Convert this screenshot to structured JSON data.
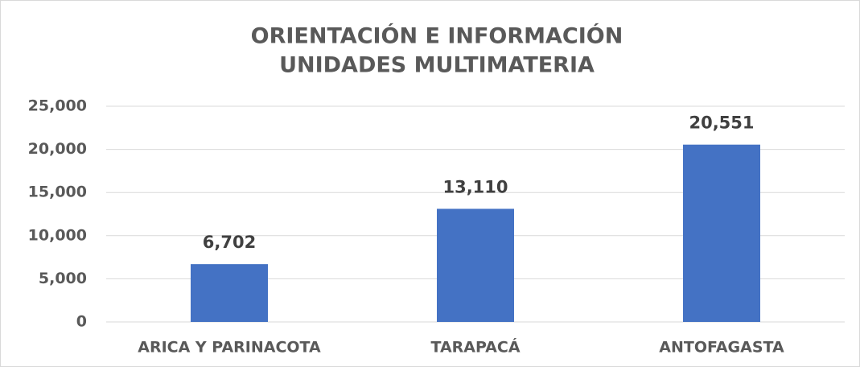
{
  "chart_data": {
    "type": "bar",
    "title": [
      "ORIENTACIÓN E INFORMACIÓN",
      "UNIDADES MULTIMATERIA"
    ],
    "categories": [
      "ARICA Y PARINACOTA",
      "TARAPACÁ",
      "ANTOFAGASTA"
    ],
    "values": [
      6702,
      13110,
      20551
    ],
    "value_labels": [
      "6,702",
      "13,110",
      "20,551"
    ],
    "color": "#4472c4",
    "ylim": [
      0,
      25000
    ],
    "yticks": [
      0,
      {
        "value": 5000,
        "label": "5,000"
      },
      {
        "value": 10000,
        "label": "10,000"
      },
      {
        "value": 15000,
        "label": "15,000"
      },
      {
        "value": 20000,
        "label": "20,000"
      },
      {
        "value": 25000,
        "label": "25,000"
      }
    ],
    "grid": true
  }
}
